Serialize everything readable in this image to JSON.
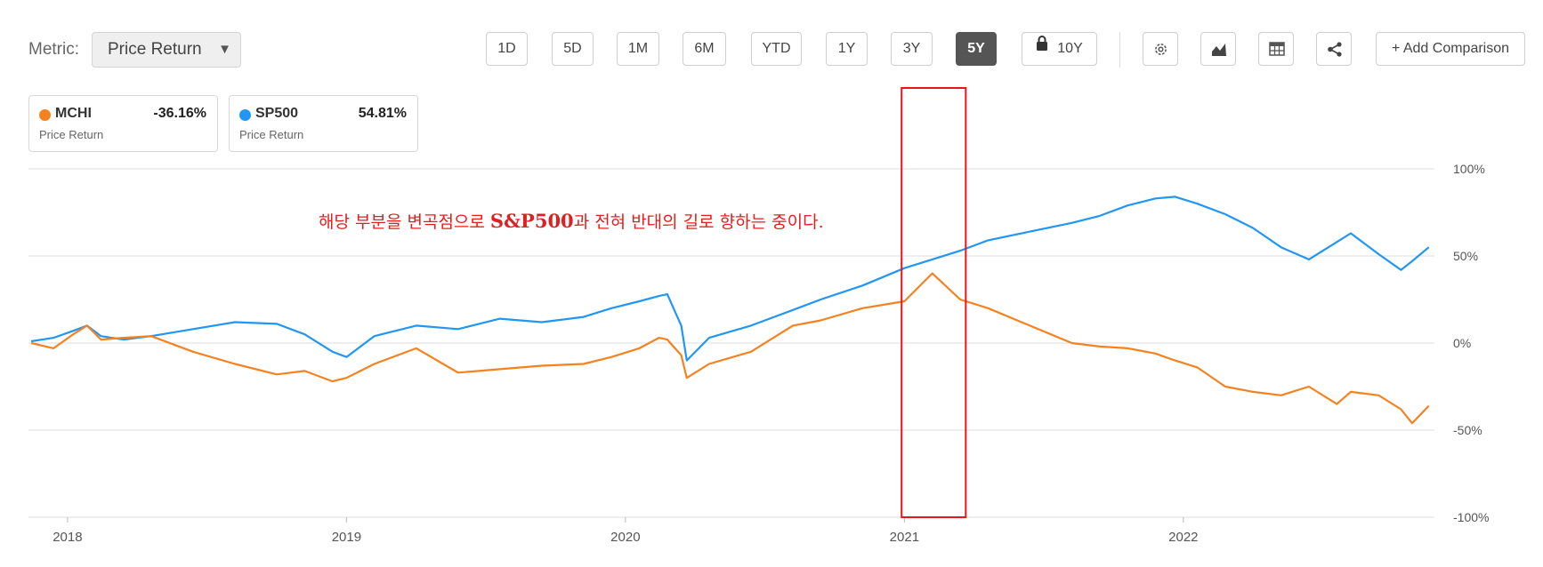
{
  "metric": {
    "label": "Metric:",
    "value": "Price Return"
  },
  "ranges": [
    "1D",
    "5D",
    "1M",
    "6M",
    "YTD",
    "1Y",
    "3Y",
    "5Y",
    "10Y"
  ],
  "active_range": "5Y",
  "locked_range": "10Y",
  "toolbar": {
    "icons": [
      "settings-icon",
      "area-chart-icon",
      "table-icon",
      "share-icon"
    ],
    "add_comparison": "+ Add Comparison"
  },
  "legend": [
    {
      "symbol": "MCHI",
      "value": "-36.16%",
      "label": "Price Return",
      "color": "#f5821f"
    },
    {
      "symbol": "SP500",
      "value": "54.81%",
      "label": "Price Return",
      "color": "#2196f3"
    }
  ],
  "annotation": {
    "text_before": "해당 부분을 변곡점으로 ",
    "text_bold": "S&P500",
    "text_after": "과 전혀 반대의 길로 향하는 중이다.",
    "color": "#e02020"
  },
  "chart_data": {
    "type": "line",
    "y_ticks": [
      "100%",
      "50%",
      "0%",
      "-50%",
      "-100%"
    ],
    "x_ticks": [
      "2018",
      "2019",
      "2020",
      "2021",
      "2022"
    ],
    "ylim": [
      -100,
      100
    ],
    "xlim": [
      2017.86,
      2022.9
    ],
    "highlight_range": [
      2020.99,
      2021.22
    ],
    "grid": true,
    "series": [
      {
        "name": "SP500",
        "color": "#2196f3",
        "x": [
          2017.87,
          2017.95,
          2018.02,
          2018.07,
          2018.12,
          2018.2,
          2018.3,
          2018.45,
          2018.6,
          2018.75,
          2018.85,
          2018.95,
          2019.0,
          2019.1,
          2019.25,
          2019.4,
          2019.55,
          2019.7,
          2019.85,
          2019.95,
          2020.05,
          2020.12,
          2020.15,
          2020.2,
          2020.22,
          2020.3,
          2020.45,
          2020.6,
          2020.7,
          2020.85,
          2021.0,
          2021.1,
          2021.2,
          2021.3,
          2021.45,
          2021.6,
          2021.7,
          2021.8,
          2021.9,
          2021.97,
          2022.05,
          2022.15,
          2022.25,
          2022.35,
          2022.45,
          2022.55,
          2022.6,
          2022.7,
          2022.78,
          2022.82,
          2022.88
        ],
        "y": [
          1,
          3,
          7,
          10,
          4,
          2,
          4,
          8,
          12,
          11,
          5,
          -5,
          -8,
          4,
          10,
          8,
          14,
          12,
          15,
          20,
          24,
          27,
          28,
          10,
          -10,
          3,
          10,
          19,
          25,
          33,
          43,
          48,
          53,
          59,
          64,
          69,
          73,
          79,
          83,
          84,
          80,
          74,
          66,
          55,
          48,
          58,
          63,
          51,
          42,
          47,
          55
        ]
      },
      {
        "name": "MCHI",
        "color": "#f5821f",
        "x": [
          2017.87,
          2017.95,
          2018.02,
          2018.07,
          2018.12,
          2018.2,
          2018.3,
          2018.45,
          2018.6,
          2018.75,
          2018.85,
          2018.95,
          2019.0,
          2019.1,
          2019.25,
          2019.4,
          2019.55,
          2019.7,
          2019.85,
          2019.95,
          2020.05,
          2020.12,
          2020.15,
          2020.2,
          2020.22,
          2020.3,
          2020.45,
          2020.6,
          2020.7,
          2020.85,
          2021.0,
          2021.1,
          2021.2,
          2021.3,
          2021.45,
          2021.6,
          2021.7,
          2021.8,
          2021.9,
          2021.97,
          2022.05,
          2022.15,
          2022.25,
          2022.35,
          2022.45,
          2022.55,
          2022.6,
          2022.7,
          2022.78,
          2022.82,
          2022.88
        ],
        "y": [
          0,
          -3,
          5,
          10,
          2,
          3,
          4,
          -5,
          -12,
          -18,
          -16,
          -22,
          -20,
          -12,
          -3,
          -17,
          -15,
          -13,
          -12,
          -8,
          -3,
          3,
          2,
          -7,
          -20,
          -12,
          -5,
          10,
          13,
          20,
          24,
          40,
          25,
          20,
          10,
          0,
          -2,
          -3,
          -6,
          -10,
          -14,
          -25,
          -28,
          -30,
          -25,
          -35,
          -28,
          -30,
          -38,
          -46,
          -36
        ]
      }
    ]
  }
}
